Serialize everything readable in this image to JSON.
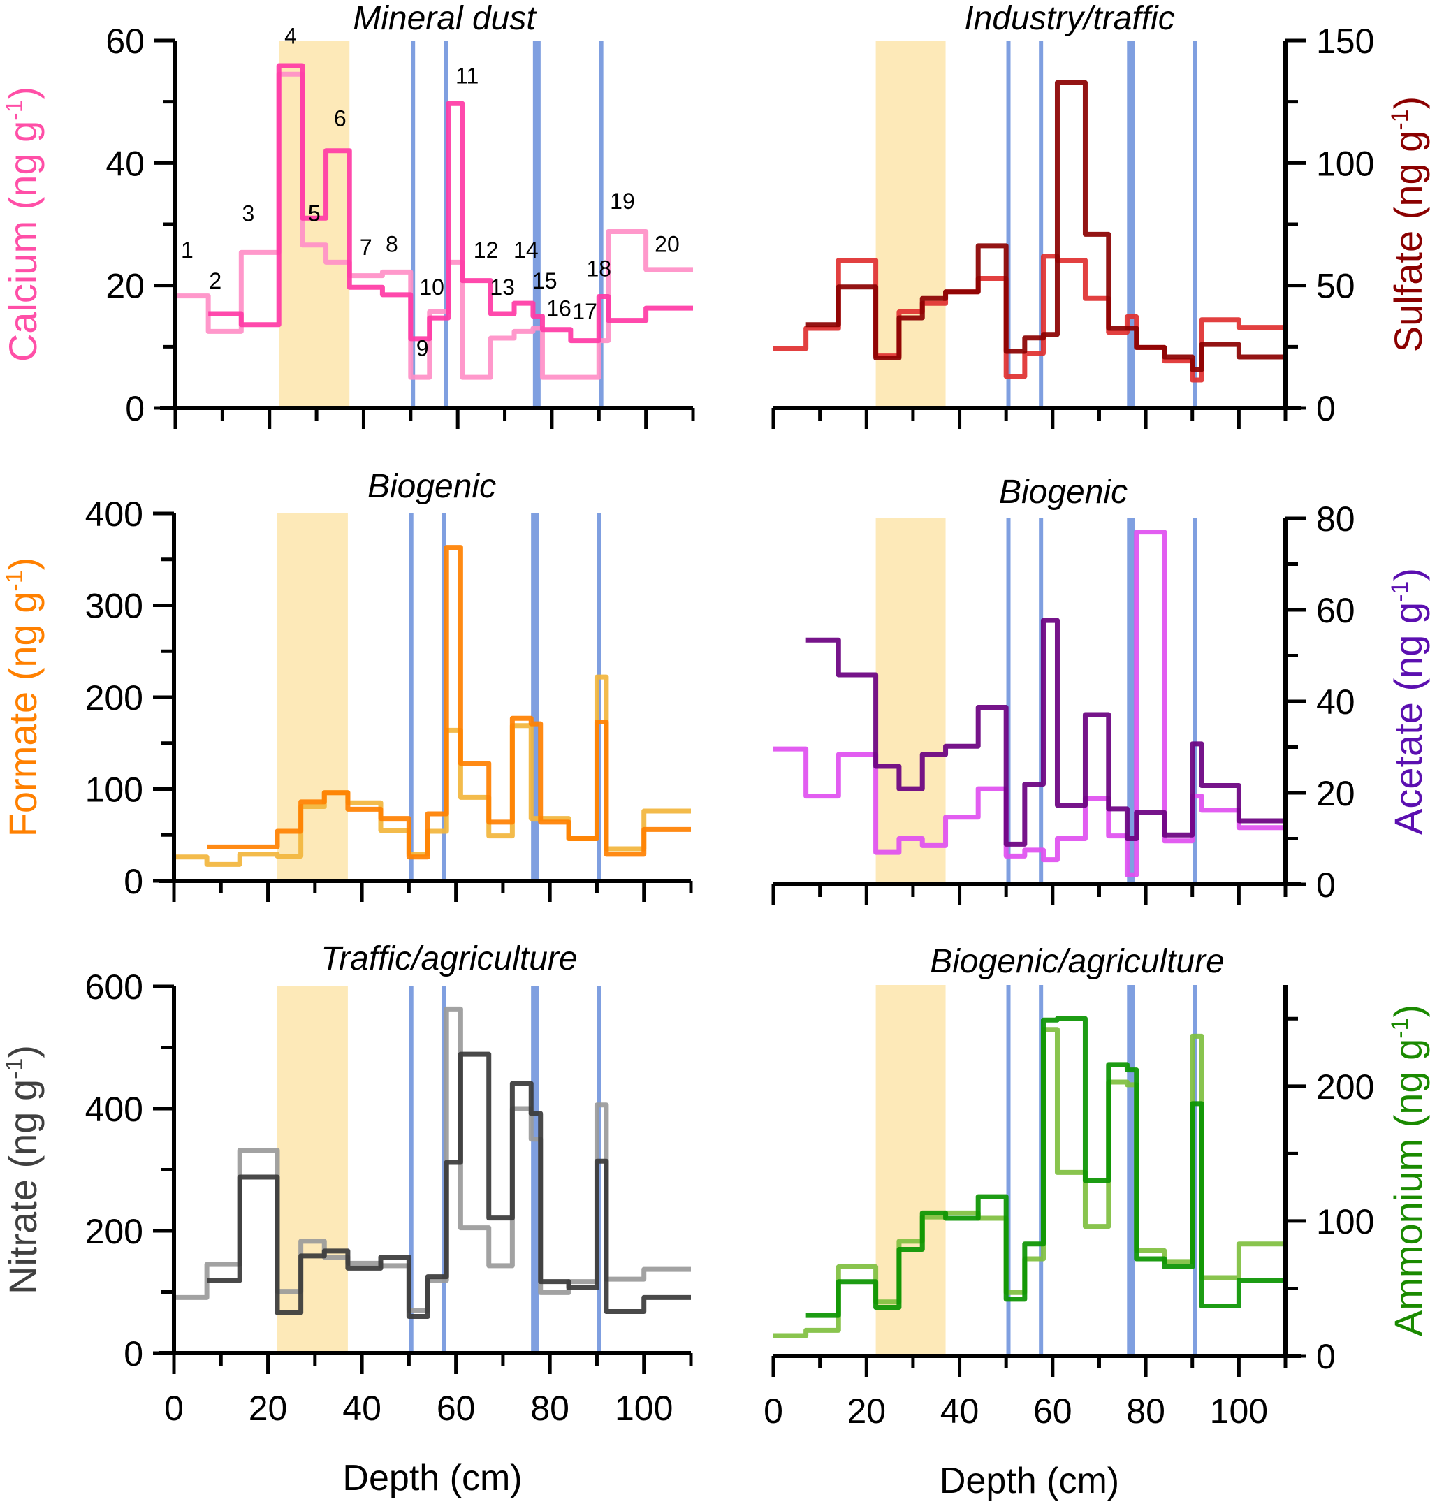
{
  "figure": {
    "shared_depth_boundaries_cm": [
      0,
      7,
      14,
      22,
      27,
      32,
      37,
      44,
      50,
      54,
      58,
      61,
      67,
      72,
      76,
      78,
      84,
      90,
      92,
      100,
      110
    ],
    "highlight_band_cm": [
      22,
      37
    ],
    "highlight_band_color": "#fde9b8",
    "marker_lines_cm": [
      50.5,
      57.5,
      76.8,
      90.5
    ],
    "marker_line_color": "#7f9fe0",
    "xlabel": "Depth (cm)",
    "xticks": [
      0,
      20,
      40,
      60,
      80,
      100
    ]
  },
  "chart_data": [
    {
      "id": "calcium",
      "type": "line",
      "step": true,
      "title": "Mineral dust",
      "ylabel": "Calcium (ng g",
      "ylabel_sup": "-1",
      "ylabel_close": ")",
      "ylabel_color": "#ff4fa7",
      "yaxis_side": "left",
      "xlim": [
        0,
        110
      ],
      "ylim": [
        0,
        60
      ],
      "yticks": [
        0,
        20,
        40,
        60
      ],
      "grid": false,
      "segment_labels": [
        "1",
        "2",
        "3",
        "4",
        "5",
        "6",
        "7",
        "8",
        "9",
        "10",
        "11",
        "12",
        "13",
        "14",
        "15",
        "16",
        "17",
        "18",
        "19",
        "20"
      ],
      "series": [
        {
          "name": "calcium-core-a",
          "color": "#ff8fc7",
          "values": [
            18.3,
            12.5,
            25.4,
            54.5,
            26.6,
            23.8,
            21.6,
            22.2,
            5.0,
            15.7,
            23.8,
            5.0,
            11.4,
            12.5,
            13.0,
            5.0,
            5.0,
            11.0,
            28.8,
            22.6
          ]
        },
        {
          "name": "calcium-core-b",
          "color": "#ff3aa5",
          "values": [
            null,
            15.4,
            13.6,
            55.9,
            31.0,
            42.0,
            19.7,
            18.5,
            11.3,
            14.7,
            49.7,
            20.8,
            15.4,
            17.1,
            15.0,
            12.8,
            11.0,
            18.2,
            14.3,
            16.3
          ]
        }
      ]
    },
    {
      "id": "sulfate",
      "type": "line",
      "step": true,
      "title": "Industry/traffic",
      "ylabel": "Sulfate (ng g",
      "ylabel_sup": "-1",
      "ylabel_close": ")",
      "ylabel_color": "#8b0000",
      "yaxis_side": "right",
      "xlim": [
        0,
        110
      ],
      "ylim": [
        0,
        150
      ],
      "yticks": [
        0,
        50,
        100,
        150
      ],
      "grid": false,
      "series": [
        {
          "name": "sulfate-core-a",
          "color": "#e03030",
          "values": [
            24.3,
            32.5,
            60.3,
            21.2,
            39.2,
            42.7,
            47.4,
            52.9,
            12.9,
            22.3,
            61.9,
            60.3,
            44.7,
            30.9,
            37.2,
            24.7,
            19.2,
            11.4,
            36.0,
            32.9
          ]
        },
        {
          "name": "sulfate-core-b",
          "color": "#8b0000",
          "values": [
            null,
            34.0,
            49.4,
            20.4,
            36.8,
            44.7,
            47.4,
            66.2,
            23.1,
            28.6,
            30.0,
            132.8,
            70.9,
            32.5,
            32.5,
            24.7,
            20.8,
            15.7,
            25.9,
            20.8
          ]
        }
      ]
    },
    {
      "id": "formate",
      "type": "line",
      "step": true,
      "title": "Biogenic",
      "ylabel": "Formate (ng g",
      "ylabel_sup": "-1",
      "ylabel_close": ")",
      "ylabel_color": "#ff8000",
      "yaxis_side": "left",
      "xlim": [
        0,
        110
      ],
      "ylim": [
        0,
        400
      ],
      "yticks": [
        0,
        100,
        200,
        300,
        400
      ],
      "grid": false,
      "series": [
        {
          "name": "formate-core-a",
          "color": "#f2b53c",
          "values": [
            26,
            18,
            29,
            27,
            81,
            96,
            85,
            55,
            29,
            54,
            164,
            91,
            49,
            169,
            68,
            68,
            46,
            222,
            35,
            76
          ]
        },
        {
          "name": "formate-core-b",
          "color": "#ff8000",
          "values": [
            null,
            37,
            37,
            54,
            86,
            96,
            78,
            68,
            26,
            73,
            363,
            128,
            64,
            177,
            171,
            64,
            46,
            173,
            29,
            56
          ]
        }
      ]
    },
    {
      "id": "acetate",
      "type": "line",
      "step": true,
      "title": "Biogenic",
      "ylabel": "Acetate (ng g",
      "ylabel_sup": "-1",
      "ylabel_close": ")",
      "ylabel_color": "#5b0fb0",
      "yaxis_side": "right",
      "xlim": [
        0,
        110
      ],
      "ylim": [
        0,
        80
      ],
      "yticks": [
        0,
        20,
        40,
        60,
        80
      ],
      "grid": false,
      "series": [
        {
          "name": "acetate-core-a",
          "color": "#e04ff0",
          "values": [
            29.6,
            19.3,
            28.4,
            7.0,
            10.0,
            8.5,
            14.7,
            20.9,
            6.2,
            7.5,
            5.4,
            10.0,
            18.8,
            10.6,
            2.1,
            77.0,
            9.5,
            19.3,
            16.2,
            12.4
          ]
        },
        {
          "name": "acetate-core-b",
          "color": "#6a0080",
          "values": [
            null,
            53.4,
            45.8,
            25.8,
            20.9,
            28.4,
            30.2,
            38.7,
            8.8,
            21.9,
            57.7,
            17.3,
            37.1,
            16.5,
            10.0,
            15.7,
            10.8,
            30.7,
            21.6,
            13.9
          ]
        }
      ]
    },
    {
      "id": "nitrate",
      "type": "line",
      "step": true,
      "title": "Traffic/agriculture",
      "ylabel": "Nitrate (ng g",
      "ylabel_sup": "-1",
      "ylabel_close": ")",
      "ylabel_color": "#404040",
      "yaxis_side": "left",
      "xlim": [
        0,
        110
      ],
      "ylim": [
        0,
        600
      ],
      "yticks": [
        0,
        200,
        400,
        600
      ],
      "grid": false,
      "series": [
        {
          "name": "nitrate-core-a",
          "color": "#9a9a9a",
          "values": [
            91,
            145,
            332,
            101,
            183,
            157,
            147,
            143,
            70,
            119,
            563,
            205,
            143,
            400,
            350,
            99,
            117,
            406,
            121,
            137
          ]
        },
        {
          "name": "nitrate-core-b",
          "color": "#3a3a3a",
          "values": [
            null,
            119,
            288,
            66,
            159,
            167,
            139,
            157,
            60,
            125,
            312,
            489,
            221,
            441,
            392,
            117,
            107,
            314,
            68,
            91
          ]
        }
      ]
    },
    {
      "id": "ammonium",
      "type": "line",
      "step": true,
      "title": "Biogenic/agriculture",
      "ylabel": "Ammonium (ng g",
      "ylabel_sup": "-1",
      "ylabel_close": ")",
      "ylabel_color": "#1a8a00",
      "yaxis_side": "right",
      "xlim": [
        0,
        110
      ],
      "ylim": [
        0,
        275
      ],
      "yticks": [
        0,
        100,
        200
      ],
      "grid": false,
      "series": [
        {
          "name": "ammonium-core-a",
          "color": "#7fbf3f",
          "values": [
            15,
            19,
            66,
            40,
            85,
            103,
            106,
            102,
            47,
            72,
            242,
            136,
            96,
            203,
            201,
            78,
            70,
            237,
            58,
            83
          ]
        },
        {
          "name": "ammonium-core-b",
          "color": "#0a9400",
          "values": [
            null,
            30,
            55,
            36,
            79,
            106,
            102,
            118,
            42,
            83,
            249,
            250,
            130,
            216,
            212,
            72,
            66,
            187,
            37,
            56
          ]
        }
      ]
    }
  ]
}
